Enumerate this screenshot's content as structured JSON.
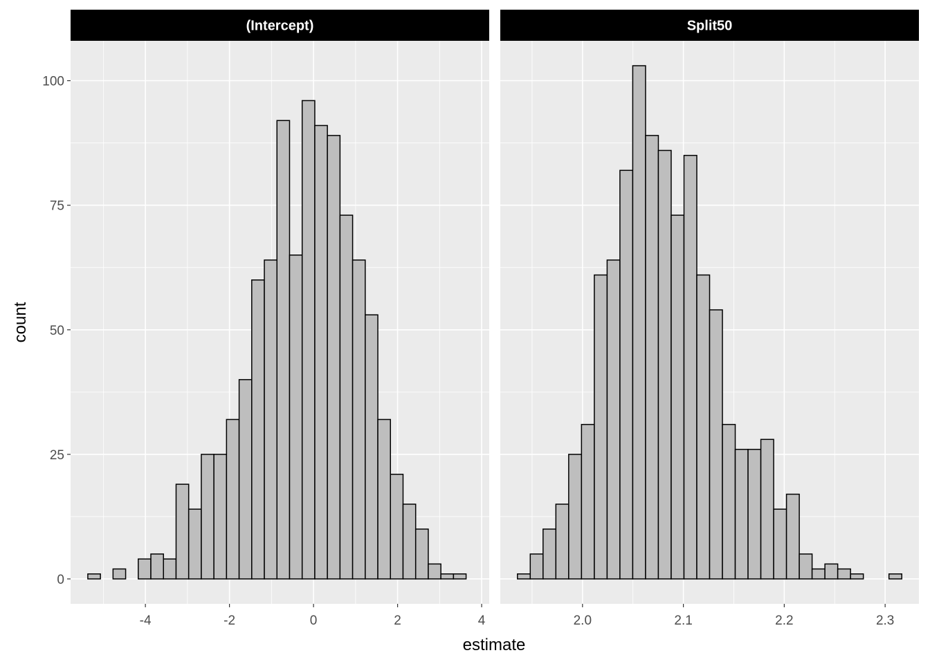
{
  "chart_data": {
    "type": "bar",
    "subtype": "faceted-histogram",
    "xlabel": "estimate",
    "ylabel": "count",
    "ylim": [
      -5,
      108
    ],
    "y_ticks": [
      0,
      25,
      50,
      75,
      100
    ],
    "bar_fill": "#bebebe",
    "bar_stroke": "#000000",
    "panel_background": "#ebebeb",
    "strip_background": "#000000",
    "grid": true,
    "facets": [
      {
        "strip": "(Intercept)",
        "xlim": [
          -5.78,
          4.18
        ],
        "x_ticks": [
          "-4",
          "-2",
          "0",
          "2",
          "4"
        ],
        "x_tick_values": [
          -4,
          -2,
          0,
          2,
          4
        ],
        "bin_start": -5.37,
        "bin_width": 0.3,
        "counts": [
          1,
          0,
          2,
          0,
          4,
          5,
          4,
          19,
          14,
          25,
          25,
          32,
          40,
          60,
          64,
          92,
          65,
          96,
          91,
          89,
          73,
          64,
          53,
          32,
          21,
          15,
          10,
          3,
          1,
          1
        ]
      },
      {
        "strip": "Split50",
        "xlim": [
          1.9185,
          2.3335
        ],
        "x_ticks": [
          "2.0",
          "2.1",
          "2.2",
          "2.3"
        ],
        "x_tick_values": [
          2.0,
          2.1,
          2.2,
          2.3
        ],
        "bin_start": 1.9355,
        "bin_width": 0.0127,
        "counts": [
          1,
          5,
          10,
          15,
          25,
          31,
          61,
          64,
          82,
          103,
          89,
          86,
          73,
          85,
          61,
          54,
          31,
          26,
          26,
          28,
          14,
          17,
          5,
          2,
          3,
          2,
          1,
          0,
          0,
          1
        ]
      }
    ]
  }
}
